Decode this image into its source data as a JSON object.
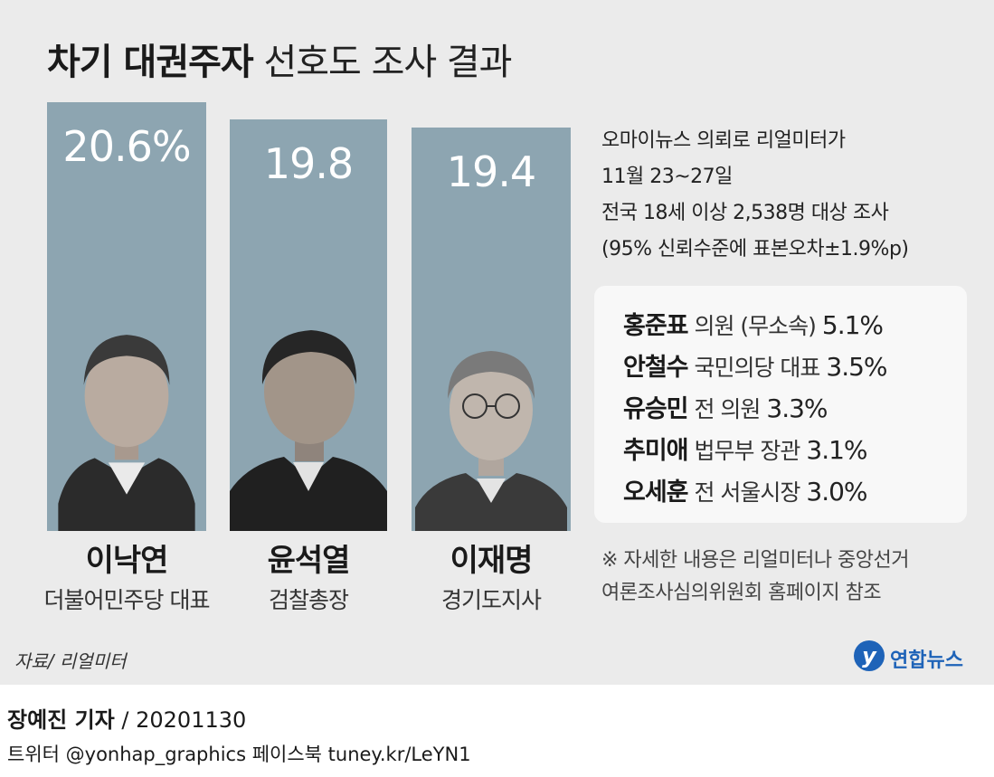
{
  "title": {
    "bold": "차기 대권주자",
    "light": "선호도 조사 결과"
  },
  "chart_data": {
    "type": "bar",
    "unit": "%",
    "categories": [
      "이낙연",
      "윤석열",
      "이재명"
    ],
    "values": [
      20.6,
      19.8,
      19.4
    ],
    "value_labels": [
      "20.6%",
      "19.8",
      "19.4"
    ],
    "roles": [
      "더불어민주당 대표",
      "검찰총장",
      "경기도지사"
    ]
  },
  "survey_info": [
    "오마이뉴스 의뢰로 리얼미터가",
    "11월 23~27일",
    "전국 18세 이상 2,538명 대상 조사",
    "(95% 신뢰수준에 표본오차±1.9%p)"
  ],
  "others": [
    {
      "name": "홍준표",
      "role": "의원 (무소속)",
      "pct": "5.1%"
    },
    {
      "name": "안철수",
      "role": "국민의당 대표",
      "pct": "3.5%"
    },
    {
      "name": "유승민",
      "role": "전 의원",
      "pct": "3.3%"
    },
    {
      "name": "추미애",
      "role": "법무부 장관",
      "pct": "3.1%"
    },
    {
      "name": "오세훈",
      "role": "전 서울시장",
      "pct": "3.0%"
    }
  ],
  "note": [
    "※ 자세한 내용은 리얼미터나 중앙선거",
    "여론조사심의위원회 홈페이지 참조"
  ],
  "source": "자료/ 리얼미터",
  "logo": {
    "text": "연합뉴스"
  },
  "byline": {
    "reporter": "장예진 기자",
    "date": " / 20201130"
  },
  "credits": "트위터 @yonhap_graphics  페이스북 tuney.kr/LeYN1",
  "colors": {
    "bar": "#8da5b1",
    "logo": "#1e63b8",
    "panel": "#ebebeb"
  }
}
